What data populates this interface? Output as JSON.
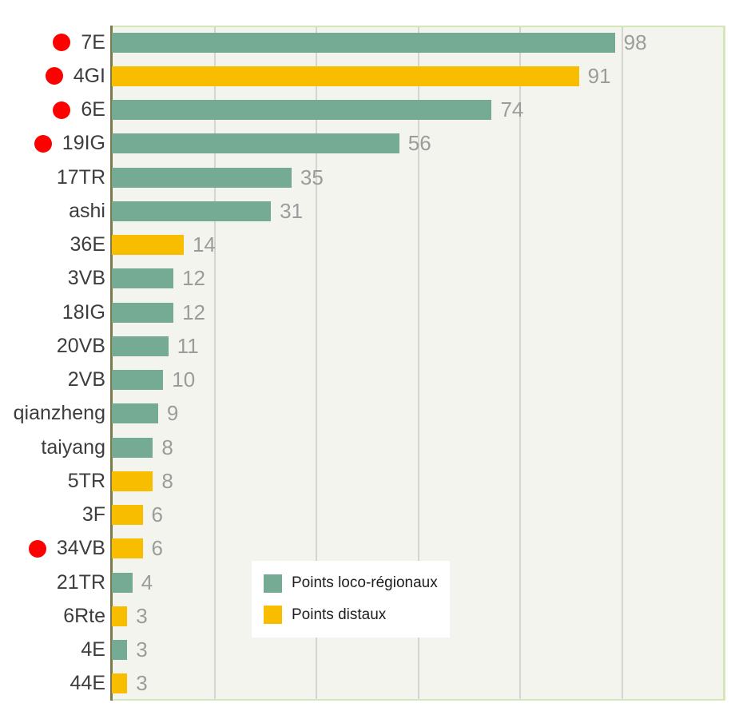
{
  "colors": {
    "loco_regional_bar": "#75ab94",
    "distal_bar": "#f9bd00",
    "red_dot": "#fe0000",
    "plot_background": "#f4f4ef",
    "gridline": "#d4d4d0",
    "axis_line": "#7c7a4d",
    "plot_frame": "#d5e6b8",
    "category_text": "#3d3d3d",
    "value_text": "#9b9b9b"
  },
  "chart_data": {
    "type": "bar",
    "orientation": "horizontal",
    "title": "",
    "xlabel": "",
    "ylabel": "",
    "xlim": [
      0,
      120
    ],
    "gridlines_x": [
      20,
      40,
      60,
      80,
      100
    ],
    "grid": true,
    "legend_position": "inside-bottom-center",
    "categories": [
      "7E",
      "4GI",
      "6E",
      "19IG",
      "17TR",
      "ashi",
      "36E",
      "3VB",
      "18IG",
      "20VB",
      "2VB",
      "qianzheng",
      "taiyang",
      "5TR",
      "3F",
      "34VB",
      "21TR",
      "6Rte",
      "4E",
      "44E"
    ],
    "values": [
      98,
      91,
      74,
      56,
      35,
      31,
      14,
      12,
      12,
      11,
      10,
      9,
      8,
      8,
      6,
      6,
      4,
      3,
      3,
      3
    ],
    "marked_with_red_dot": [
      "7E",
      "4GI",
      "6E",
      "19IG",
      "34VB"
    ],
    "rows": [
      {
        "label": "7E",
        "value": 98,
        "series": "loco-regional",
        "red_dot": true
      },
      {
        "label": "4GI",
        "value": 91,
        "series": "distal",
        "red_dot": true
      },
      {
        "label": "6E",
        "value": 74,
        "series": "loco-regional",
        "red_dot": true
      },
      {
        "label": "19IG",
        "value": 56,
        "series": "loco-regional",
        "red_dot": true
      },
      {
        "label": "17TR",
        "value": 35,
        "series": "loco-regional",
        "red_dot": false
      },
      {
        "label": "ashi",
        "value": 31,
        "series": "loco-regional",
        "red_dot": false
      },
      {
        "label": "36E",
        "value": 14,
        "series": "distal",
        "red_dot": false
      },
      {
        "label": "3VB",
        "value": 12,
        "series": "loco-regional",
        "red_dot": false
      },
      {
        "label": "18IG",
        "value": 12,
        "series": "loco-regional",
        "red_dot": false
      },
      {
        "label": "20VB",
        "value": 11,
        "series": "loco-regional",
        "red_dot": false
      },
      {
        "label": "2VB",
        "value": 10,
        "series": "loco-regional",
        "red_dot": false
      },
      {
        "label": "qianzheng",
        "value": 9,
        "series": "loco-regional",
        "red_dot": false
      },
      {
        "label": "taiyang",
        "value": 8,
        "series": "loco-regional",
        "red_dot": false
      },
      {
        "label": "5TR",
        "value": 8,
        "series": "distal",
        "red_dot": false
      },
      {
        "label": "3F",
        "value": 6,
        "series": "distal",
        "red_dot": false
      },
      {
        "label": "34VB",
        "value": 6,
        "series": "distal",
        "red_dot": true
      },
      {
        "label": "21TR",
        "value": 4,
        "series": "loco-regional",
        "red_dot": false
      },
      {
        "label": "6Rte",
        "value": 3,
        "series": "distal",
        "red_dot": false
      },
      {
        "label": "4E",
        "value": 3,
        "series": "loco-regional",
        "red_dot": false
      },
      {
        "label": "44E",
        "value": 3,
        "series": "distal",
        "red_dot": false
      }
    ],
    "legend": [
      {
        "label": "Points loco-régionaux",
        "series": "loco-regional"
      },
      {
        "label": "Points distaux",
        "series": "distal"
      }
    ]
  }
}
